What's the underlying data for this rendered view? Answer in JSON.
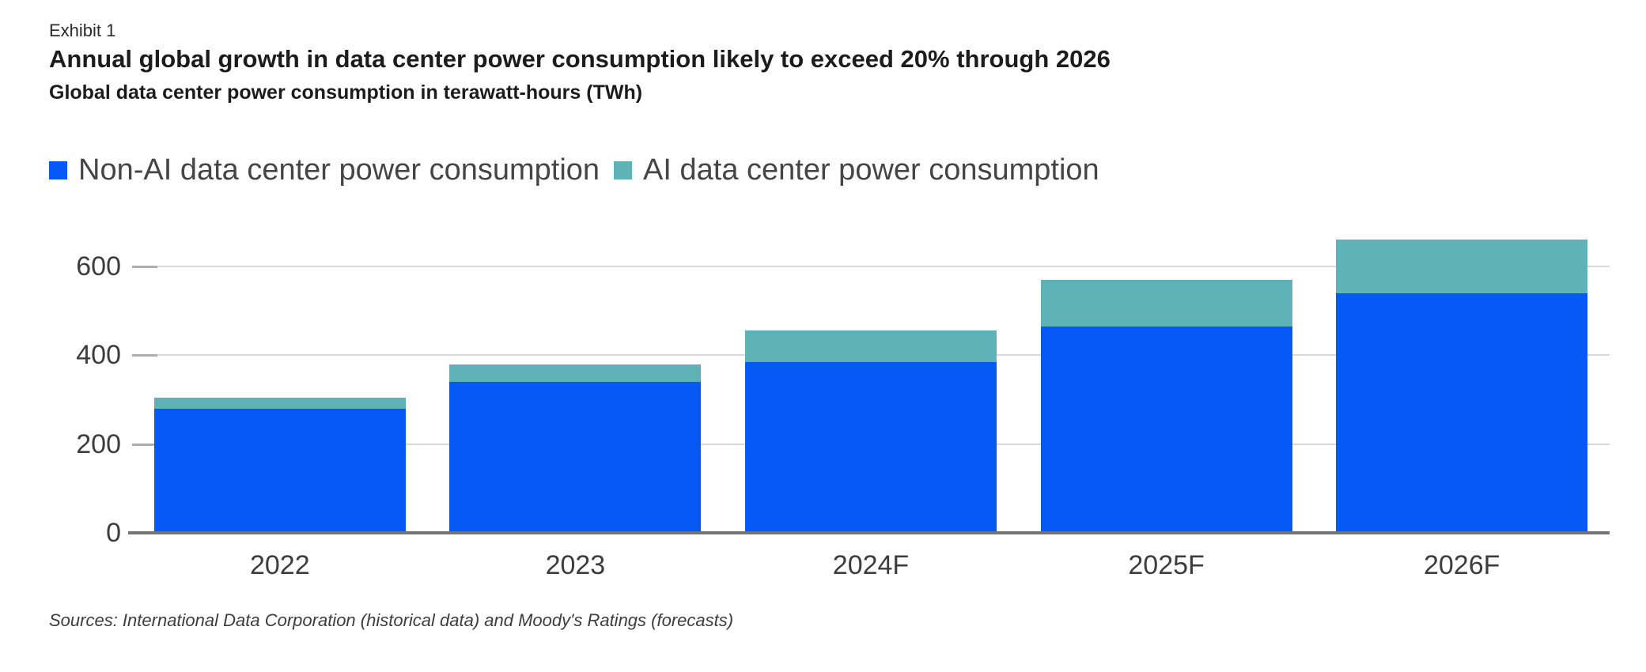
{
  "header": {
    "exhibit_label": "Exhibit 1",
    "title": "Annual global growth in data center power consumption likely to exceed 20% through 2026",
    "subtitle": "Global data center power consumption in terawatt-hours (TWh)"
  },
  "footer": {
    "sources": "Sources: International Data Corporation (historical data) and Moody's Ratings (forecasts)"
  },
  "chart_data": {
    "type": "bar",
    "stacked": true,
    "categories": [
      "2022",
      "2023",
      "2024F",
      "2025F",
      "2026F"
    ],
    "series": [
      {
        "name": "Non-AI data center power consumption",
        "color": "#0659f5",
        "values": [
          280,
          340,
          385,
          465,
          540
        ]
      },
      {
        "name": "AI data center power consumption",
        "color": "#5fb2b8",
        "values": [
          25,
          40,
          70,
          105,
          120
        ]
      }
    ],
    "totals": [
      305,
      380,
      455,
      570,
      660
    ],
    "title": "Annual global growth in data center power consumption likely to exceed 20% through 2026",
    "subtitle": "Global data center power consumption in terawatt-hours (TWh)",
    "xlabel": "",
    "ylabel": "",
    "yticks": [
      0,
      200,
      400,
      600
    ],
    "ylim": [
      0,
      660
    ],
    "grid": "horizontal",
    "legend_position": "top",
    "colors": {
      "gridline": "#d9d9d9",
      "axis_line": "#747474",
      "axis_text": "#3d3d3d",
      "title_text": "#1c1c1c",
      "legend_text": "#454545"
    }
  }
}
